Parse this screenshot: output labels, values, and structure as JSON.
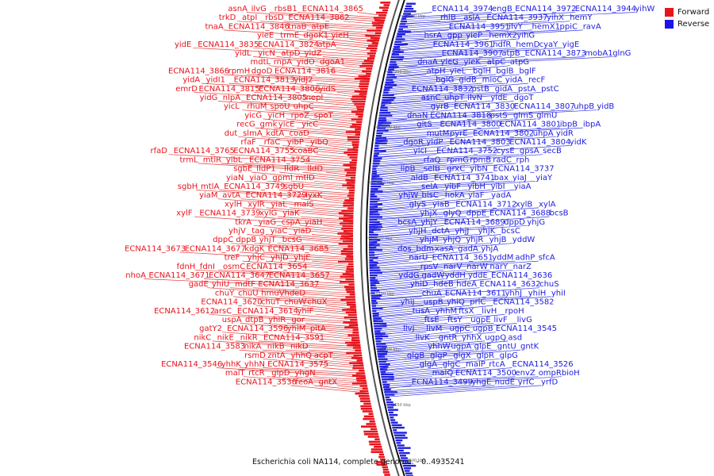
{
  "caption": "Escherichia coli NA114, complete genome. - 0..4935241",
  "legend": [
    {
      "label": "Forward",
      "color": "#e8141c"
    },
    {
      "label": "Reverse",
      "color": "#1c14e8"
    }
  ],
  "colors": {
    "forward": "#e8141c",
    "reverse": "#2020e0",
    "forward_line": "#e23a3a",
    "reverse_line": "#3a3ae2"
  },
  "ticks": [
    "4000 kbp",
    "3950 kbp",
    "3900 kbp",
    "3850 kbp",
    "3800 kbp",
    "3750 kbp",
    "3700 kbp",
    "3650 kbp",
    "3600 kbp"
  ],
  "forward_labels": [
    "ECNA114_3865",
    "rbsB1",
    "ilvG",
    "asnA",
    "ECNA114_3862",
    "rbsD",
    "atpI",
    "trkD",
    "atpE",
    "tnaB",
    "ECNA114_3846",
    "tnaA",
    "yieH",
    "dgoK1",
    "trmE",
    "yieE",
    "atpA",
    "ECNA114_3824",
    "ECNA114_3835",
    "yidE",
    "yidZ",
    "atpD",
    "yicN",
    "yidL",
    "dgoA1",
    "yidO",
    "rnpA",
    "mdtL",
    "ECNA114_3816",
    "dgoD",
    "rpmH",
    "ECNA114_3866",
    "yidJ2",
    "ECNA114_3813",
    "yidI1",
    "yidA",
    "yidS",
    "ECNA114_3806",
    "ECNA114_3815",
    "emrD",
    "nepI",
    "ECNA114_3805",
    "nlpA",
    "yidG",
    "uhpC",
    "spoU",
    "rhuM",
    "yicL",
    "spoT",
    "rpoZ",
    "yicH",
    "yicG",
    "yicC",
    "yicE",
    "gmk",
    "recG",
    "coaD",
    "kdtA",
    "slmA",
    "dut",
    "yibQ",
    "yibP",
    "rfaC",
    "rfaF",
    "coaBC",
    "ECNA114_3755",
    "ECNA114_3765",
    "rfaD",
    "ECNA114_3754",
    "yibL",
    "mtlR",
    "trmL",
    "lldD",
    "lldR",
    "lldP1",
    "sgbE",
    "mtlD",
    "gpmI",
    "yiaO",
    "yiaN",
    "sgbU",
    "ECNA114_3749",
    "mtlA",
    "sgbH",
    "lyxK",
    "ECNA114_3729",
    "avtA",
    "yiaM",
    "malS",
    "yiaL",
    "xylR",
    "xylH",
    "yiaK",
    "xylG",
    "ECNA114_3739",
    "xylF",
    "yiaH",
    "cspA",
    "yiaG",
    "tkrA",
    "yiaD",
    "yiaC",
    "tag",
    "yhjV",
    "bcsG",
    "yhjT",
    "dppB",
    "dppC",
    "ECNA114_3685",
    "kdgK",
    "ECNA114_3677",
    "ECNA114_3673",
    "yhjE",
    "yhjD",
    "yhjC",
    "treF",
    "ECNA114_3654",
    "osmC",
    "fdnI",
    "fdnH",
    "ECNA114_3657",
    "ECNA114_3647",
    "ECNA114_3671",
    "nhoA",
    "ECNA114_3637",
    "mdtF",
    "yhiU",
    "gadE",
    "hdeD",
    "hmuV",
    "chuU",
    "chuY",
    "chuX",
    "chuW",
    "chuT",
    "ECNA114_3620",
    "yhiF",
    "ECNA114_3614",
    "arsC",
    "ECNA114_3612",
    "gor",
    "yhiR",
    "dtpB",
    "uspA",
    "pitA",
    "yhiM",
    "ECNA114_3596",
    "gatY2",
    "ECNA114_3591",
    "nikR",
    "nikE",
    "nikC",
    "nikD",
    "nikB",
    "nikA",
    "ECNA114_3583",
    "acpT",
    "yhhQ",
    "zntA",
    "rsmD",
    "ECNA114_3575",
    "yhhN",
    "yhhK",
    "ECNA114_3546",
    "yhgN",
    "glpD",
    "rtcR",
    "malT",
    "gntX",
    "feoA",
    "ECNA114_3536"
  ],
  "reverse_labels": [
    "ECNA114_3974",
    "engB",
    "ECNA114_3972",
    "ECNA114_3944",
    "yihW",
    "rhlB",
    "aslA",
    "ECNA114_3937",
    "yihX",
    "hemY",
    "ECNA114_3951",
    "ilvY",
    "hemX1",
    "ppiC",
    "ravA",
    "hsrA",
    "gpp",
    "yieP",
    "hemX2",
    "yihG",
    "ECNA114_3961",
    "hdfR",
    "hemD",
    "cyaY",
    "yigE",
    "ECNA114_3907",
    "atpB",
    "ECNA114_3873",
    "mobA1",
    "glnG",
    "dnaA",
    "yieG",
    "yieK",
    "atpC",
    "atpG",
    "atpH",
    "yieL",
    "bglH",
    "bglB",
    "bglF",
    "bglG",
    "gidB",
    "mioC",
    "yidA",
    "recF",
    "ECNA114_3832",
    "pstB",
    "gidA",
    "pstA",
    "pstC",
    "asnC",
    "uhpT",
    "ilvN",
    "yidE",
    "dgoT",
    "gyrB",
    "ECNA114_3830",
    "ECNA114_3807",
    "uhpB",
    "yidB",
    "dnaN",
    "ECNA114_3818",
    "pstS",
    "glmS",
    "glmU",
    "gltS",
    "ECNA114_3800",
    "ECNA114_3801",
    "ibpB",
    "ibpA",
    "mutM",
    "pyrE",
    "ECNA114_3802",
    "uhpA",
    "yidR",
    "dgoR",
    "yidP",
    "ECNA114_3803",
    "ECNA114_3804",
    "yidK",
    "yicI",
    "ECNA114_3752",
    "cysE",
    "gpsA",
    "secB",
    "rfaQ",
    "rpmG",
    "rpmB",
    "radC",
    "rph",
    "lipB",
    "selB",
    "grxC",
    "yibN",
    "ECNA114_3737",
    "aldB",
    "ECNA114_3741",
    "bax",
    "yiaJ",
    "yiaY",
    "selA",
    "yibF",
    "yibH",
    "yibI",
    "yiaA",
    "yhjW",
    "bisC",
    "hokA",
    "yiaF",
    "yadA",
    "glyS",
    "yiaB",
    "ECNA114_3712",
    "xylB",
    "xylA",
    "yhjX",
    "glyQ",
    "dppE",
    "ECNA114_3688",
    "bcsB",
    "bcsA",
    "yhjY",
    "ECNA114_3689",
    "dppD",
    "yhjG",
    "yhjH",
    "dctA",
    "yhjJ",
    "yhjK",
    "bcsC",
    "yhjM",
    "yhjQ",
    "yhjR",
    "yhjB",
    "yddW",
    "dos",
    "bdm",
    "xasA",
    "gadA",
    "yhjA",
    "narU",
    "ECNA114_3651",
    "yddM",
    "adhP",
    "sfcA",
    "rpsV",
    "narV",
    "narW",
    "narY",
    "narZ",
    "yddG",
    "gadW",
    "yddH",
    "yddE",
    "ECNA114_3636",
    "yhiD",
    "hdeB",
    "hdeA",
    "ECNA114_3632",
    "chuS",
    "chuA",
    "ECNA114_3611",
    "yhhJ",
    "yhiH",
    "yhiI",
    "yhiJ",
    "uspB",
    "yhiQ",
    "prlC",
    "ECNA114_3582",
    "tusA",
    "yhhM",
    "ftsX",
    "livH",
    "rpoH",
    "ftsE",
    "ftsY",
    "ugpE",
    "livF",
    "livG",
    "livJ",
    "livM",
    "ugpC",
    "ugpB",
    "ECNA114_3545",
    "livK",
    "gntR",
    "yhhX",
    "ugpQ",
    "asd",
    "yhhW",
    "ugpA",
    "glpE",
    "gntU",
    "gntK",
    "glgB",
    "glgP",
    "glgX",
    "glpR",
    "glpG",
    "glgA",
    "glgC",
    "malP",
    "rtcA",
    "ECNA114_3526",
    "malQ",
    "ECNA114_3500",
    "envZ",
    "ompR",
    "bioH",
    "ECNA114_3499",
    "yhgE",
    "nudE",
    "yrfC",
    "yrfD"
  ]
}
